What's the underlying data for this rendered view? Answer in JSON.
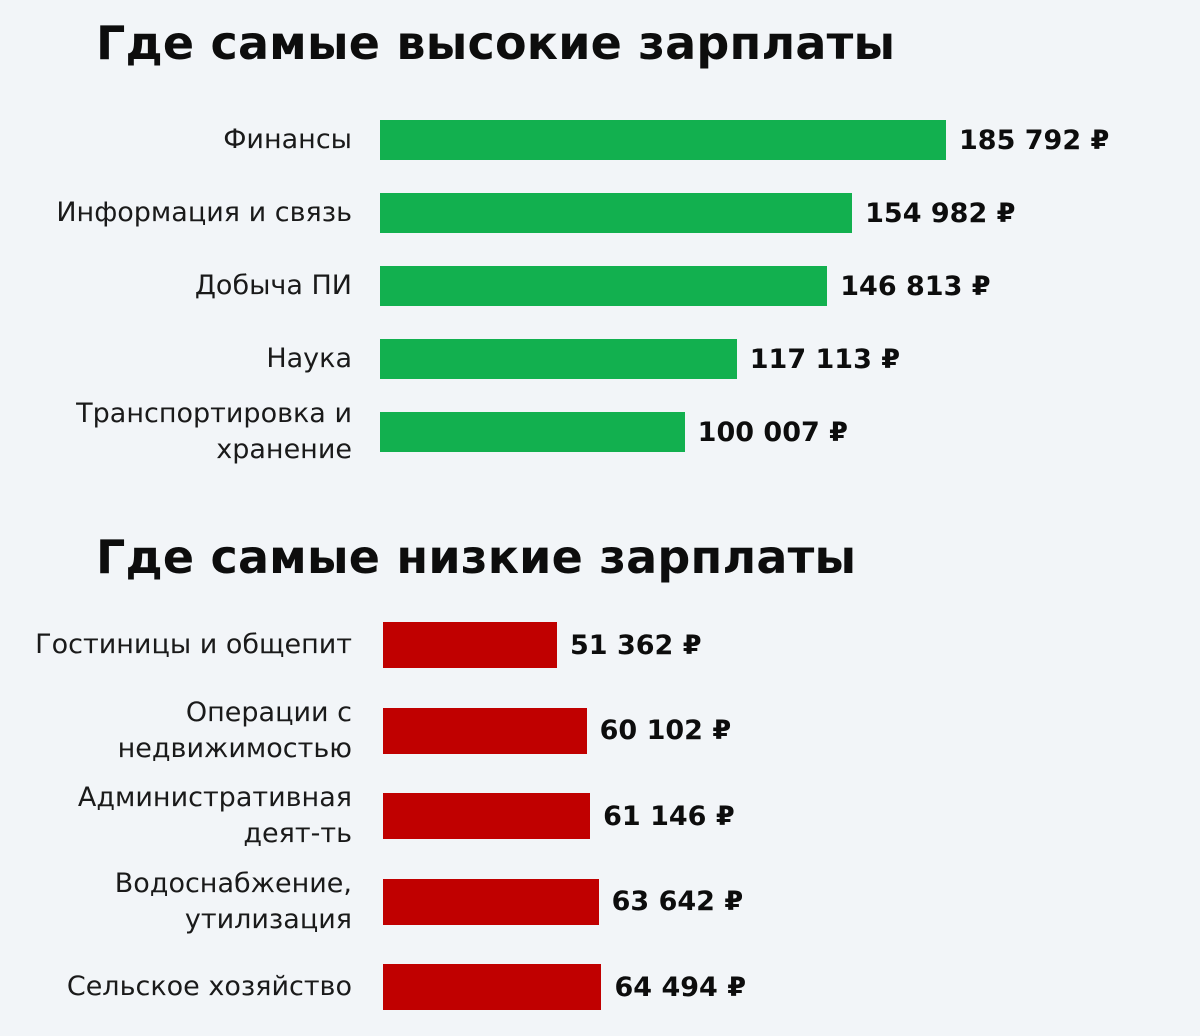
{
  "chart_data": [
    {
      "type": "bar",
      "orientation": "horizontal",
      "title": "Где самые высокие зарплаты",
      "color": "#12b04f",
      "categories": [
        "Финансы",
        "Информация и связь",
        "Добыча ПИ",
        "Наука",
        "Транспортировка и хранение"
      ],
      "values": [
        185792,
        154982,
        146813,
        117113,
        100007
      ],
      "value_labels": [
        "185 792 ₽",
        "154 982 ₽",
        "146 813 ₽",
        "117 113 ₽",
        "100 007 ₽"
      ]
    },
    {
      "type": "bar",
      "orientation": "horizontal",
      "title": "Где самые низкие зарплаты",
      "color": "#c00000",
      "categories": [
        "Гостиницы и общепит",
        "Операции с недвижимостью",
        "Административная деят-ть",
        "Водоснабжение, утилизация",
        "Сельское хозяйство"
      ],
      "values": [
        51362,
        60102,
        61146,
        63642,
        64494
      ],
      "value_labels": [
        "51 362 ₽",
        "60 102 ₽",
        "61 146 ₽",
        "63 642 ₽",
        "64 494 ₽"
      ]
    }
  ]
}
